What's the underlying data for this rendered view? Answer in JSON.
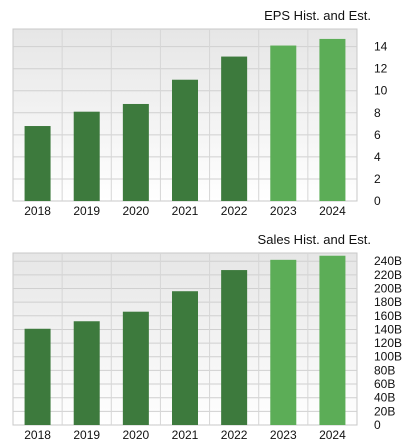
{
  "chart_data": [
    {
      "type": "bar",
      "title": "EPS Hist. and Est.",
      "categories": [
        "2018",
        "2019",
        "2020",
        "2021",
        "2022",
        "2023",
        "2024"
      ],
      "values": [
        6.8,
        8.1,
        8.8,
        11.0,
        13.1,
        14.1,
        14.7
      ],
      "estimate": [
        false,
        false,
        false,
        false,
        false,
        true,
        true
      ],
      "ylim": [
        0,
        15.6
      ],
      "yticks": [
        0,
        2,
        4,
        6,
        8,
        10,
        12,
        14
      ],
      "ytick_labels": [
        "0",
        "2",
        "4",
        "6",
        "8",
        "10",
        "12",
        "14"
      ],
      "grid": true,
      "colors": {
        "historical": "#3d7a3d",
        "estimate": "#5cad57"
      }
    },
    {
      "type": "bar",
      "title": "Sales Hist. and Est.",
      "categories": [
        "2018",
        "2019",
        "2020",
        "2021",
        "2022",
        "2023",
        "2024"
      ],
      "values": [
        141,
        152,
        166,
        196,
        227,
        242,
        248
      ],
      "estimate": [
        false,
        false,
        false,
        false,
        false,
        true,
        true
      ],
      "ylim": [
        0,
        252
      ],
      "yticks": [
        0,
        20,
        40,
        60,
        80,
        100,
        120,
        140,
        160,
        180,
        200,
        220,
        240
      ],
      "ytick_labels": [
        "0",
        "20B",
        "40B",
        "60B",
        "80B",
        "100B",
        "120B",
        "140B",
        "160B",
        "180B",
        "200B",
        "220B",
        "240B"
      ],
      "grid": true,
      "colors": {
        "historical": "#3d7a3d",
        "estimate": "#5cad57"
      }
    }
  ]
}
